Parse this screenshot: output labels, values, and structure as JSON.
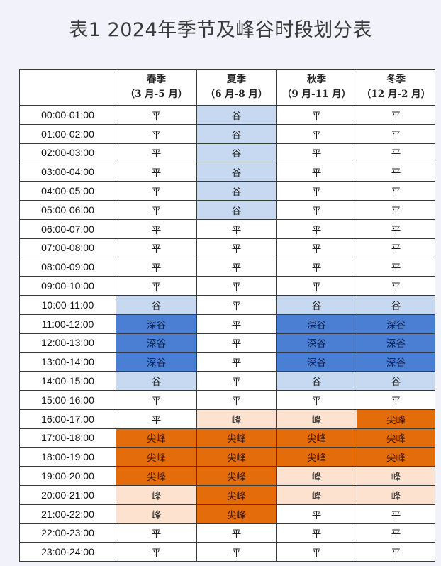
{
  "title": "表1  2024年季节及峰谷时段划分表",
  "colors": {
    "平": "#ffffff",
    "谷": "#c6d9f1",
    "深谷": "#4a7fd4",
    "峰": "#fde3cf",
    "尖峰": "#e46c0a"
  },
  "headers": [
    {
      "name": "",
      "range": ""
    },
    {
      "name": "春季",
      "range": "（3 月-5 月）"
    },
    {
      "name": "夏季",
      "range": "（6 月-8 月）"
    },
    {
      "name": "秋季",
      "range": "（9 月-11 月）"
    },
    {
      "name": "冬季",
      "range": "（12 月-2 月）"
    }
  ],
  "rows": [
    {
      "time": "00:00-01:00",
      "cells": [
        "平",
        "谷",
        "平",
        "平"
      ]
    },
    {
      "time": "01:00-02:00",
      "cells": [
        "平",
        "谷",
        "平",
        "平"
      ]
    },
    {
      "time": "02:00-03:00",
      "cells": [
        "平",
        "谷",
        "平",
        "平"
      ]
    },
    {
      "time": "03:00-04:00",
      "cells": [
        "平",
        "谷",
        "平",
        "平"
      ]
    },
    {
      "time": "04:00-05:00",
      "cells": [
        "平",
        "谷",
        "平",
        "平"
      ]
    },
    {
      "time": "05:00-06:00",
      "cells": [
        "平",
        "谷",
        "平",
        "平"
      ]
    },
    {
      "time": "06:00-07:00",
      "cells": [
        "平",
        "平",
        "平",
        "平"
      ]
    },
    {
      "time": "07:00-08:00",
      "cells": [
        "平",
        "平",
        "平",
        "平"
      ]
    },
    {
      "time": "08:00-09:00",
      "cells": [
        "平",
        "平",
        "平",
        "平"
      ]
    },
    {
      "time": "09:00-10:00",
      "cells": [
        "平",
        "平",
        "平",
        "平"
      ]
    },
    {
      "time": "10:00-11:00",
      "cells": [
        "谷",
        "平",
        "谷",
        "谷"
      ]
    },
    {
      "time": "11:00-12:00",
      "cells": [
        "深谷",
        "平",
        "深谷",
        "深谷"
      ]
    },
    {
      "time": "12:00-13:00",
      "cells": [
        "深谷",
        "平",
        "深谷",
        "深谷"
      ]
    },
    {
      "time": "13:00-14:00",
      "cells": [
        "深谷",
        "平",
        "深谷",
        "深谷"
      ]
    },
    {
      "time": "14:00-15:00",
      "cells": [
        "谷",
        "平",
        "谷",
        "谷"
      ]
    },
    {
      "time": "15:00-16:00",
      "cells": [
        "平",
        "平",
        "平",
        "平"
      ]
    },
    {
      "time": "16:00-17:00",
      "cells": [
        "平",
        "峰",
        "峰",
        "尖峰"
      ]
    },
    {
      "time": "17:00-18:00",
      "cells": [
        "尖峰",
        "尖峰",
        "尖峰",
        "尖峰"
      ]
    },
    {
      "time": "18:00-19:00",
      "cells": [
        "尖峰",
        "尖峰",
        "尖峰",
        "尖峰"
      ]
    },
    {
      "time": "19:00-20:00",
      "cells": [
        "尖峰",
        "尖峰",
        "峰",
        "峰"
      ]
    },
    {
      "time": "20:00-21:00",
      "cells": [
        "峰",
        "尖峰",
        "峰",
        "峰"
      ]
    },
    {
      "time": "21:00-22:00",
      "cells": [
        "峰",
        "尖峰",
        "平",
        "平"
      ]
    },
    {
      "time": "22:00-23:00",
      "cells": [
        "平",
        "平",
        "平",
        "平"
      ]
    },
    {
      "time": "23:00-24:00",
      "cells": [
        "平",
        "平",
        "平",
        "平"
      ]
    }
  ]
}
